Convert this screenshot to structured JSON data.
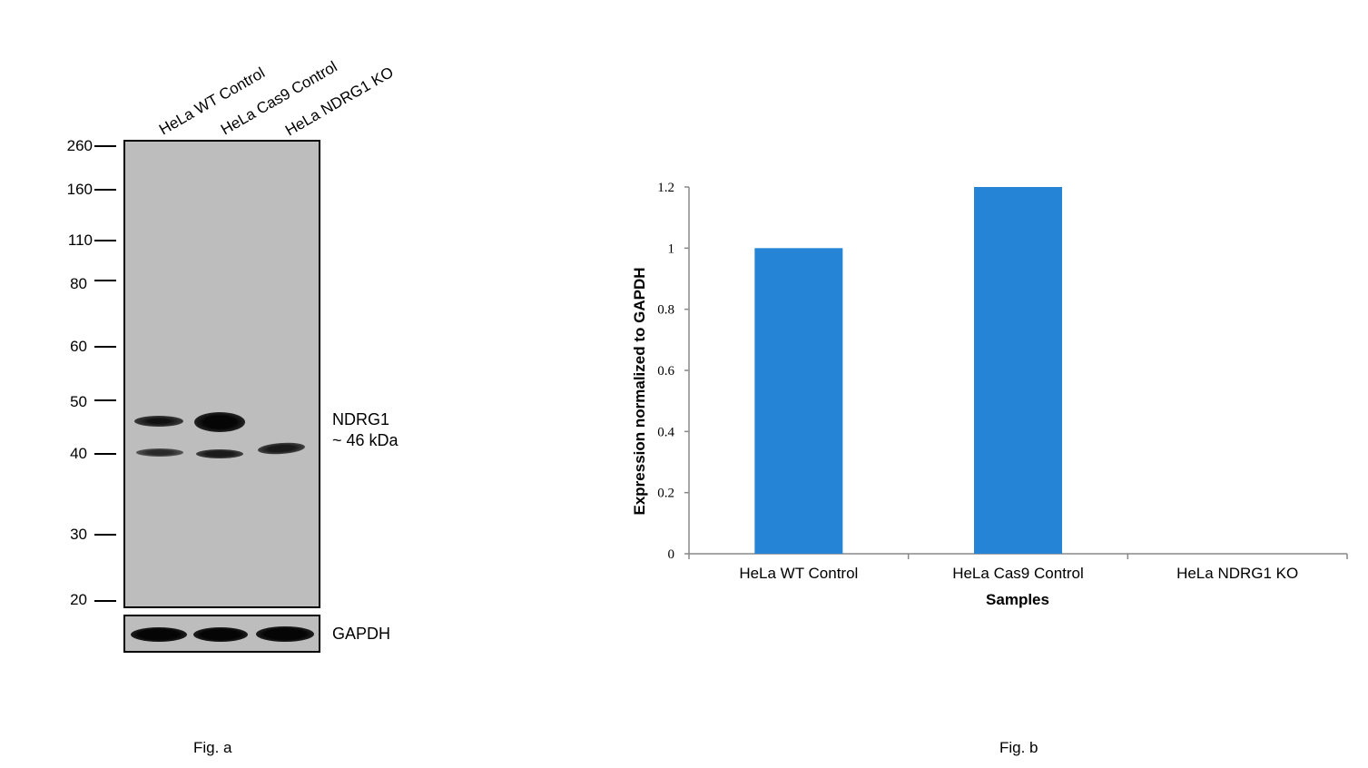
{
  "figure_a": {
    "lanes": [
      "HeLa WT Control",
      "HeLa Cas9 Control",
      "HeLa NDRG1 KO"
    ],
    "markers": [
      "260",
      "160",
      "110",
      "80",
      "60",
      "50",
      "40",
      "30",
      "20"
    ],
    "target_label": "NDRG1",
    "target_size": "~ 46 kDa",
    "loading_control": "GAPDH",
    "caption": "Fig. a"
  },
  "figure_b": {
    "caption": "Fig. b"
  },
  "chart_data": {
    "type": "bar",
    "categories": [
      "HeLa WT Control",
      "HeLa Cas9 Control",
      "HeLa NDRG1 KO"
    ],
    "values": [
      1.0,
      1.2,
      0.0
    ],
    "xlabel": "Samples",
    "ylabel": "Expression  normalized to GAPDH",
    "ylim": [
      0,
      1.2
    ],
    "yticks": [
      "0",
      "0.2",
      "0.4",
      "0.6",
      "0.8",
      "1",
      "1.2"
    ],
    "grid": false,
    "bar_color": "#2684D6"
  }
}
